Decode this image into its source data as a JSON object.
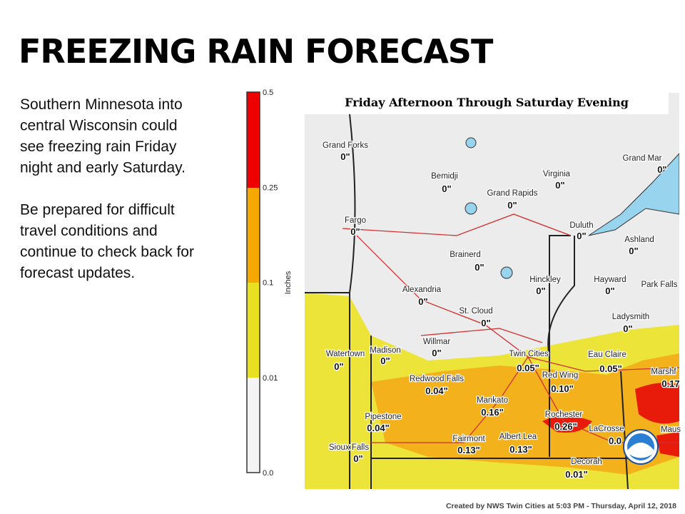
{
  "title": "FREEZING RAIN FORECAST",
  "body": {
    "paragraphs": [
      [
        "Southern Minnesota into",
        "central Wisconsin could",
        "see freezing rain Friday",
        "night and early Saturday."
      ],
      [
        "Be prepared for difficult",
        "travel conditions and",
        "continue to check back for",
        "forecast updates."
      ]
    ]
  },
  "legend": {
    "title": "Inches",
    "ticks": [
      "0.5",
      "0.25",
      "0.1",
      "0.01",
      "0.0"
    ]
  },
  "map": {
    "title": "Friday Afternoon Through Saturday Evening",
    "cities": [
      {
        "name": "Grand Forks",
        "value": "0\""
      },
      {
        "name": "Bemidji",
        "value": "0\""
      },
      {
        "name": "Virginia",
        "value": "0\""
      },
      {
        "name": "Grand Mar",
        "value": "0\""
      },
      {
        "name": "Grand Rapids",
        "value": "0\""
      },
      {
        "name": "Fargo",
        "value": "0\""
      },
      {
        "name": "Duluth",
        "value": "0\""
      },
      {
        "name": "Ashland",
        "value": "0\""
      },
      {
        "name": "Brainerd",
        "value": "0\""
      },
      {
        "name": "Hinckley",
        "value": "0\""
      },
      {
        "name": "Hayward",
        "value": "0\""
      },
      {
        "name": "Park Falls"
      },
      {
        "name": "Alexandria",
        "value": "0\""
      },
      {
        "name": "St. Cloud",
        "value": "0\""
      },
      {
        "name": "Ladysmith",
        "value": "0\""
      },
      {
        "name": "Willmar",
        "value": "0\""
      },
      {
        "name": "Watertown",
        "value": "0\""
      },
      {
        "name": "Madison",
        "value": "0\""
      },
      {
        "name": "Twin Cities",
        "value": "0.05\""
      },
      {
        "name": "Eau Claire",
        "value": "0.05\""
      },
      {
        "name": "Marshf",
        "value": "0.17"
      },
      {
        "name": "Redwood Falls",
        "value": "0.04\""
      },
      {
        "name": "Red Wing",
        "value": "0.10\""
      },
      {
        "name": "Mankato",
        "value": "0.16\""
      },
      {
        "name": "Rochester",
        "value": "0.26\""
      },
      {
        "name": "Pipestone",
        "value": "0.04\""
      },
      {
        "name": "Maus"
      },
      {
        "name": "Fairmont",
        "value": "0.13\""
      },
      {
        "name": "Albert Lea",
        "value": "0.13\""
      },
      {
        "name": "LaCrosse",
        "value": "0.0"
      },
      {
        "name": "Sioux Falls",
        "value": "0\""
      },
      {
        "name": "Decorah",
        "value": "0.01\""
      }
    ]
  },
  "footer": "Created by NWS Twin Cities at 5:03 PM - Thursday, April 12, 2018"
}
